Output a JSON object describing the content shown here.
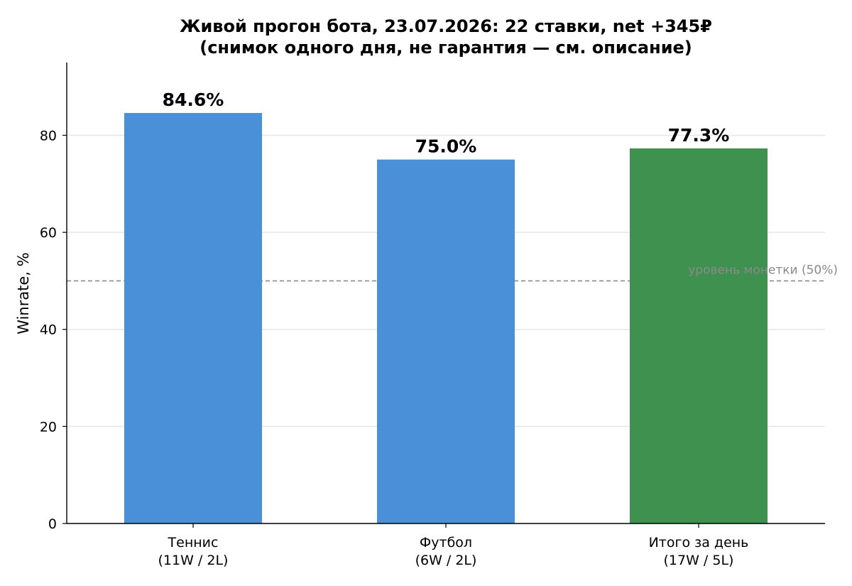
{
  "chart_data": {
    "type": "bar",
    "title": "Живой прогон бота, 23.07.2026: 22 ставки, net +345₽",
    "subtitle": "(снимок одного дня, не гарантия — см. описание)",
    "ylabel": "Winrate, %",
    "xlabel": "",
    "ylim": [
      0,
      95
    ],
    "yticks": [
      0,
      20,
      40,
      60,
      80
    ],
    "grid": "y",
    "categories": [
      [
        "Теннис",
        "(11W / 2L)"
      ],
      [
        "Футбол",
        "(6W / 2L)"
      ],
      [
        "Итого за день",
        "(17W / 5L)"
      ]
    ],
    "values": [
      84.6,
      75.0,
      77.3
    ],
    "value_labels": [
      "84.6%",
      "75.0%",
      "77.3%"
    ],
    "bar_colors": [
      "#4a90d9",
      "#4a90d9",
      "#3f9150"
    ],
    "reference_line": {
      "value": 50,
      "label": "уровень монетки (50%)",
      "color": "#8a8a8a",
      "style": "dashed"
    }
  }
}
